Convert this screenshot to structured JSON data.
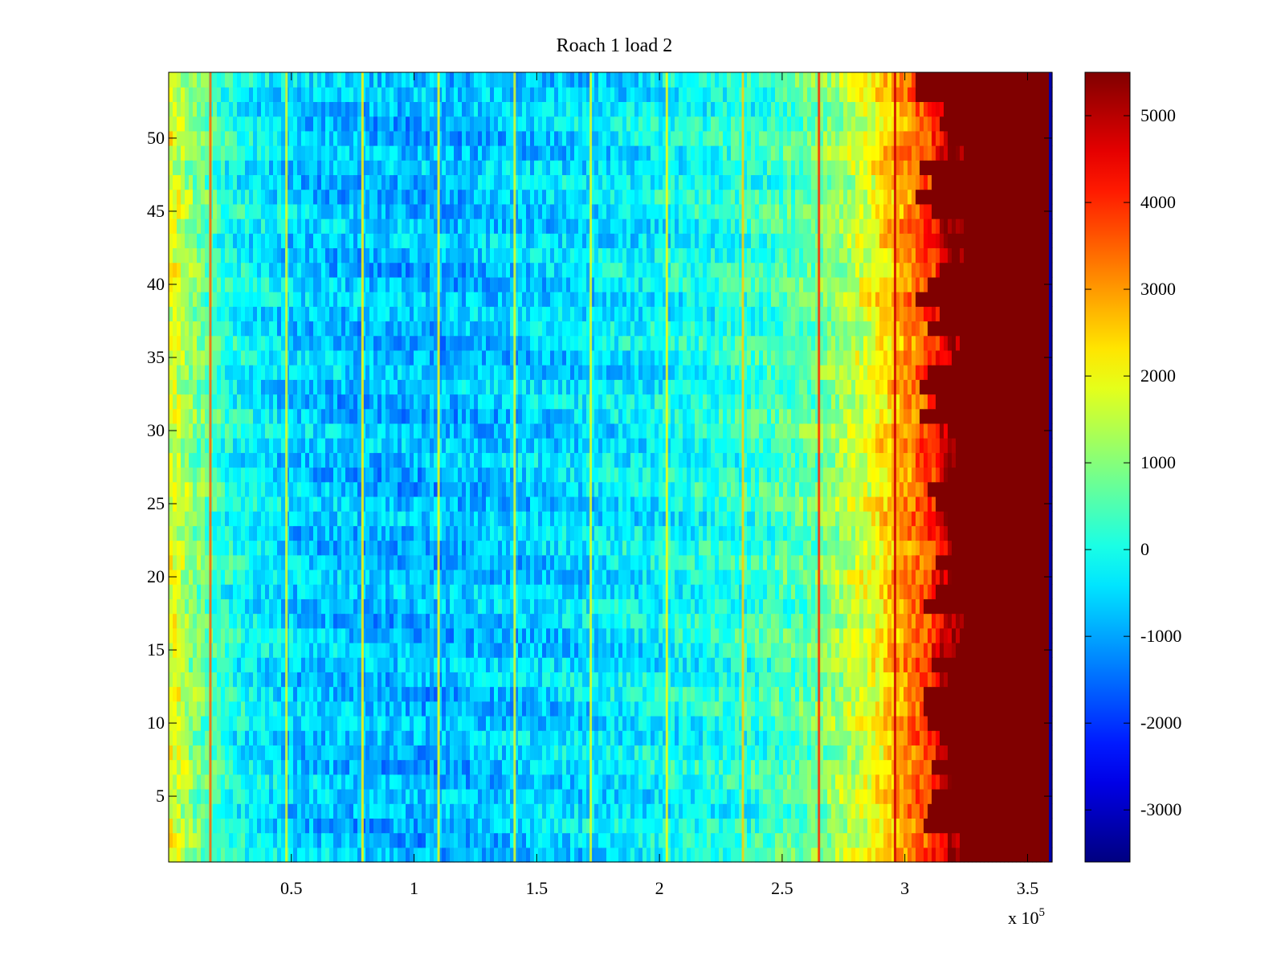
{
  "chart_data": {
    "type": "heatmap",
    "title": "Roach 1 load 2",
    "xlabel": "",
    "ylabel": "",
    "x_exponent_label": {
      "base": "x 10",
      "exponent": "5"
    },
    "xlim": [
      0,
      360000
    ],
    "ylim": [
      0.5,
      54.5
    ],
    "x_ticks": [
      50000,
      100000,
      150000,
      200000,
      250000,
      300000,
      350000
    ],
    "x_tick_labels": [
      "0.5",
      "1",
      "1.5",
      "2",
      "2.5",
      "3",
      "3.5"
    ],
    "y_ticks": [
      5,
      10,
      15,
      20,
      25,
      30,
      35,
      40,
      45,
      50
    ],
    "y_tick_labels": [
      "5",
      "10",
      "15",
      "20",
      "25",
      "30",
      "35",
      "40",
      "45",
      "50"
    ],
    "rows": 54,
    "colorbar": {
      "colormap": "jet",
      "clim": [
        -3600,
        5500
      ],
      "ticks": [
        -3000,
        -2000,
        -1000,
        0,
        1000,
        2000,
        3000,
        4000,
        5000
      ],
      "tick_labels": [
        "-3000",
        "-2000",
        "-1000",
        "0",
        "1000",
        "2000",
        "3000",
        "4000",
        "5000"
      ]
    },
    "baseline_profile": {
      "x": [
        0,
        10000,
        25000,
        50000,
        80000,
        110000,
        150000,
        200000,
        240000,
        265000,
        285000,
        297000,
        310000,
        320000
      ],
      "values": [
        2000,
        1000,
        0,
        -600,
        -800,
        -850,
        -600,
        -200,
        200,
        800,
        1800,
        2800,
        3800,
        5500
      ]
    },
    "saturated_from_x": 320000,
    "saturated_value": 5500,
    "vertical_stripes": [
      {
        "x": 17000,
        "value": 3500
      },
      {
        "x": 48000,
        "value": 1800
      },
      {
        "x": 79000,
        "value": 2200
      },
      {
        "x": 110000,
        "value": 2000
      },
      {
        "x": 141000,
        "value": 1800
      },
      {
        "x": 172000,
        "value": 1800
      },
      {
        "x": 203000,
        "value": 2000
      },
      {
        "x": 234000,
        "value": 2500
      },
      {
        "x": 265000,
        "value": 4000
      },
      {
        "x": 296000,
        "value": 4800
      }
    ],
    "edge_column": {
      "x": 359000,
      "value": -3200
    }
  }
}
